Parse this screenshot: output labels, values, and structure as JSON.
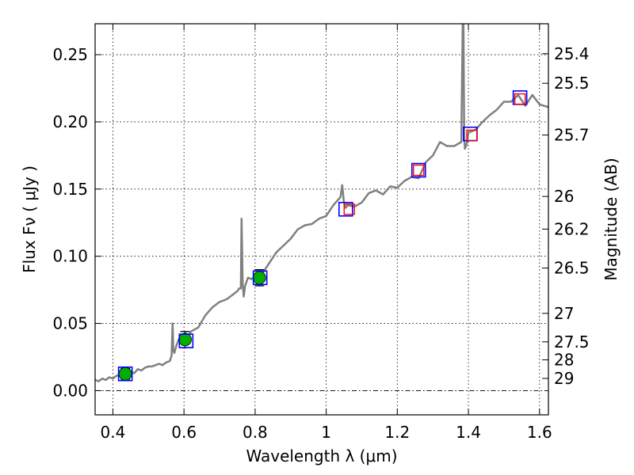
{
  "chart_data": {
    "type": "line",
    "xlabel": "Wavelength  λ (μm)",
    "ylabel": "Flux  Fν  ( μJy )",
    "y2label": "Magnitude (AB)",
    "xlim": [
      0.35,
      1.625
    ],
    "ylim": [
      -0.018,
      0.273
    ],
    "grid": true,
    "x_ticks": [
      0.4,
      0.6,
      0.8,
      1.0,
      1.2,
      1.4,
      1.6
    ],
    "x_tick_labels": [
      "0.4",
      "0.6",
      "0.8",
      "1",
      "1.2",
      "1.4",
      "1.6"
    ],
    "y_ticks": [
      0.0,
      0.05,
      0.1,
      0.15,
      0.2,
      0.25
    ],
    "y_tick_labels": [
      "0.00",
      "0.05",
      "0.10",
      "0.15",
      "0.20",
      "0.25"
    ],
    "mag_ticks": [
      {
        "flux": 0.2507,
        "label": "25.4"
      },
      {
        "flux": 0.2287,
        "label": "25.5"
      },
      {
        "flux": 0.1902,
        "label": "25.7"
      },
      {
        "flux": 0.1445,
        "label": "26"
      },
      {
        "flux": 0.1202,
        "label": "26.2"
      },
      {
        "flux": 0.0912,
        "label": "26.5"
      },
      {
        "flux": 0.0575,
        "label": "27"
      },
      {
        "flux": 0.0363,
        "label": "27.5"
      },
      {
        "flux": 0.0229,
        "label": "28"
      },
      {
        "flux": 0.0091,
        "label": "29"
      }
    ],
    "zero_line": 0.0,
    "series": [
      {
        "name": "model spectrum",
        "color": "#808080",
        "x": [
          0.35,
          0.36,
          0.37,
          0.38,
          0.39,
          0.4,
          0.41,
          0.42,
          0.43,
          0.44,
          0.45,
          0.46,
          0.47,
          0.48,
          0.49,
          0.5,
          0.51,
          0.52,
          0.53,
          0.54,
          0.55,
          0.56,
          0.565,
          0.568,
          0.57,
          0.573,
          0.578,
          0.585,
          0.6,
          0.62,
          0.64,
          0.66,
          0.68,
          0.7,
          0.72,
          0.74,
          0.75,
          0.755,
          0.76,
          0.762,
          0.765,
          0.768,
          0.772,
          0.78,
          0.79,
          0.8,
          0.82,
          0.84,
          0.86,
          0.88,
          0.9,
          0.92,
          0.94,
          0.96,
          0.98,
          1.0,
          1.02,
          1.04,
          1.045,
          1.05,
          1.055,
          1.06,
          1.08,
          1.1,
          1.12,
          1.14,
          1.16,
          1.18,
          1.2,
          1.22,
          1.24,
          1.26,
          1.28,
          1.3,
          1.32,
          1.34,
          1.36,
          1.38,
          1.384,
          1.386,
          1.388,
          1.39,
          1.395,
          1.4,
          1.42,
          1.44,
          1.46,
          1.48,
          1.5,
          1.52,
          1.54,
          1.56,
          1.58,
          1.6,
          1.625
        ],
        "y": [
          0.008,
          0.007,
          0.009,
          0.008,
          0.01,
          0.009,
          0.011,
          0.012,
          0.012,
          0.013,
          0.014,
          0.013,
          0.016,
          0.015,
          0.017,
          0.018,
          0.018,
          0.019,
          0.02,
          0.019,
          0.021,
          0.022,
          0.026,
          0.05,
          0.03,
          0.028,
          0.033,
          0.038,
          0.036,
          0.044,
          0.047,
          0.056,
          0.062,
          0.066,
          0.068,
          0.072,
          0.074,
          0.076,
          0.076,
          0.128,
          0.08,
          0.07,
          0.078,
          0.084,
          0.083,
          0.085,
          0.087,
          0.095,
          0.103,
          0.108,
          0.113,
          0.12,
          0.123,
          0.124,
          0.128,
          0.13,
          0.138,
          0.144,
          0.153,
          0.14,
          0.136,
          0.138,
          0.137,
          0.14,
          0.147,
          0.149,
          0.146,
          0.152,
          0.151,
          0.156,
          0.159,
          0.158,
          0.17,
          0.175,
          0.185,
          0.182,
          0.182,
          0.185,
          0.275,
          0.275,
          0.19,
          0.18,
          0.183,
          0.192,
          0.194,
          0.2,
          0.205,
          0.209,
          0.215,
          0.215,
          0.22,
          0.212,
          0.22,
          0.213,
          0.211
        ]
      },
      {
        "name": "model photometry",
        "color": "#0000ff",
        "x": [
          0.435,
          0.606,
          0.814,
          1.055,
          1.26,
          1.405,
          1.545
        ],
        "y": [
          0.0125,
          0.037,
          0.084,
          0.135,
          0.164,
          0.191,
          0.218
        ]
      },
      {
        "name": "upper limits",
        "color": "#ff0000",
        "x": [
          1.065,
          1.26,
          1.41,
          1.545
        ],
        "y": [
          0.135,
          0.164,
          0.19,
          0.217
        ]
      },
      {
        "name": "observed",
        "color": "#00b000",
        "x": [
          0.435,
          0.603,
          0.812
        ],
        "y": [
          0.0125,
          0.038,
          0.084
        ],
        "err": [
          0.004,
          0.006,
          0.006
        ]
      }
    ]
  }
}
